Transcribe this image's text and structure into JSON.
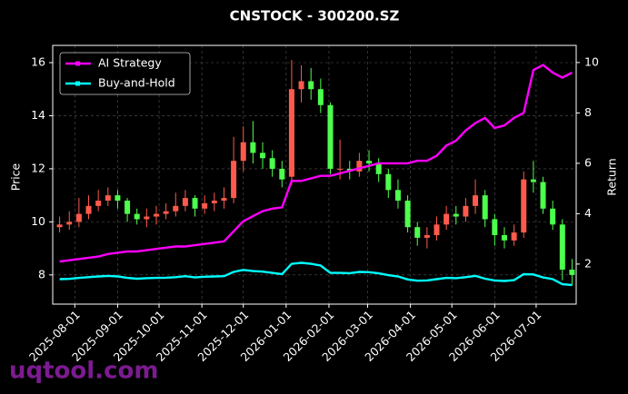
{
  "chart_data": {
    "type": "candlestick",
    "title": "CNSTOCK - 300200.SZ",
    "ylabel": "Price",
    "y2label": "Return",
    "watermark": "uqtool.com",
    "up_color": "#ff5a4d",
    "down_color": "#4dff4d",
    "grid": true,
    "legend": "upper-left",
    "x": [
      "2025-07-21",
      "2025-07-28",
      "2025-08-04",
      "2025-08-11",
      "2025-08-18",
      "2025-08-25",
      "2025-09-01",
      "2025-09-08",
      "2025-09-15",
      "2025-09-22",
      "2025-09-29",
      "2025-10-06",
      "2025-10-13",
      "2025-10-20",
      "2025-10-27",
      "2025-11-03",
      "2025-11-10",
      "2025-11-17",
      "2025-11-24",
      "2025-12-01",
      "2025-12-08",
      "2025-12-15",
      "2025-12-22",
      "2025-12-29",
      "2026-01-05",
      "2026-01-12",
      "2026-01-19",
      "2026-01-26",
      "2026-02-02",
      "2026-02-09",
      "2026-02-16",
      "2026-02-23",
      "2026-03-02",
      "2026-03-09",
      "2026-03-16",
      "2026-03-23",
      "2026-03-30",
      "2026-04-06",
      "2026-04-13",
      "2026-04-20",
      "2026-04-27",
      "2026-05-04",
      "2026-05-11",
      "2026-05-18",
      "2026-05-25",
      "2026-06-01",
      "2026-06-08",
      "2026-06-15",
      "2026-06-22",
      "2026-06-29",
      "2026-07-06",
      "2026-07-13",
      "2026-07-20",
      "2026-07-27"
    ],
    "open": [
      9.8,
      9.9,
      10.0,
      10.3,
      10.6,
      10.8,
      11.0,
      10.8,
      10.3,
      10.1,
      10.2,
      10.3,
      10.4,
      10.6,
      10.9,
      10.5,
      10.7,
      10.8,
      10.9,
      12.3,
      13.0,
      12.6,
      12.4,
      12.0,
      11.7,
      15.0,
      15.3,
      15.0,
      14.4,
      12.0,
      12.0,
      11.9,
      12.3,
      12.2,
      11.8,
      11.2,
      10.8,
      9.8,
      9.4,
      9.5,
      9.9,
      10.3,
      10.2,
      10.6,
      11.0,
      10.1,
      9.5,
      9.3,
      9.6,
      11.6,
      11.5,
      10.5,
      9.9,
      8.2
    ],
    "high": [
      10.2,
      10.4,
      10.9,
      11.0,
      11.2,
      11.3,
      11.2,
      10.9,
      10.5,
      10.5,
      10.6,
      10.7,
      11.1,
      11.2,
      11.0,
      11.0,
      11.1,
      11.3,
      13.2,
      13.6,
      13.8,
      13.0,
      12.7,
      12.3,
      16.1,
      15.9,
      15.8,
      15.4,
      14.5,
      13.1,
      12.3,
      12.6,
      12.7,
      12.4,
      12.0,
      11.6,
      11.0,
      10.0,
      9.8,
      10.2,
      10.6,
      10.6,
      10.9,
      11.6,
      11.2,
      10.3,
      9.8,
      9.9,
      11.9,
      12.3,
      11.7,
      10.8,
      10.1,
      8.6
    ],
    "low": [
      9.6,
      9.7,
      9.8,
      10.1,
      10.4,
      10.6,
      10.5,
      10.0,
      9.9,
      9.8,
      9.9,
      10.1,
      10.2,
      10.4,
      10.2,
      10.3,
      10.4,
      10.5,
      10.7,
      11.9,
      12.2,
      12.0,
      11.7,
      11.3,
      11.4,
      14.5,
      14.6,
      14.1,
      11.8,
      11.6,
      11.6,
      11.7,
      11.9,
      11.5,
      10.9,
      10.5,
      9.6,
      9.1,
      9.0,
      9.3,
      9.7,
      9.9,
      10.0,
      10.3,
      9.8,
      9.1,
      9.0,
      9.1,
      9.4,
      11.1,
      10.3,
      9.7,
      7.8,
      7.6
    ],
    "close": [
      9.9,
      10.0,
      10.3,
      10.6,
      10.8,
      11.0,
      10.8,
      10.3,
      10.1,
      10.2,
      10.3,
      10.4,
      10.6,
      10.9,
      10.5,
      10.7,
      10.8,
      10.9,
      12.3,
      13.0,
      12.6,
      12.4,
      12.0,
      11.6,
      15.0,
      15.3,
      15.0,
      14.4,
      12.0,
      12.0,
      11.9,
      12.3,
      12.2,
      11.8,
      11.2,
      10.8,
      9.8,
      9.4,
      9.5,
      9.9,
      10.3,
      10.2,
      10.6,
      11.0,
      10.1,
      9.5,
      9.3,
      9.6,
      11.6,
      11.5,
      10.5,
      9.9,
      8.2,
      8.0
    ],
    "series": [
      {
        "name": "AI Strategy",
        "color": "#ff00ff",
        "axis": "y2",
        "values": [
          2.1,
          2.15,
          2.2,
          2.25,
          2.3,
          2.4,
          2.45,
          2.5,
          2.5,
          2.55,
          2.6,
          2.65,
          2.7,
          2.7,
          2.75,
          2.8,
          2.85,
          2.9,
          3.3,
          3.7,
          3.9,
          4.1,
          4.2,
          4.25,
          5.3,
          5.3,
          5.4,
          5.5,
          5.5,
          5.6,
          5.7,
          5.8,
          5.9,
          6.0,
          6.0,
          6.0,
          6.0,
          6.1,
          6.1,
          6.3,
          6.7,
          6.9,
          7.3,
          7.6,
          7.8,
          7.4,
          7.5,
          7.8,
          8.0,
          9.7,
          9.9,
          9.6,
          9.4,
          9.6
        ]
      },
      {
        "name": "Buy-and-Hold",
        "color": "#00ffff",
        "axis": "y2",
        "values": [
          1.4,
          1.41,
          1.45,
          1.48,
          1.51,
          1.53,
          1.51,
          1.45,
          1.42,
          1.44,
          1.45,
          1.46,
          1.48,
          1.52,
          1.47,
          1.5,
          1.51,
          1.52,
          1.69,
          1.77,
          1.72,
          1.7,
          1.65,
          1.6,
          2.01,
          2.05,
          2.01,
          1.94,
          1.65,
          1.65,
          1.64,
          1.69,
          1.68,
          1.63,
          1.56,
          1.51,
          1.39,
          1.34,
          1.35,
          1.4,
          1.45,
          1.44,
          1.48,
          1.53,
          1.42,
          1.35,
          1.33,
          1.36,
          1.6,
          1.59,
          1.47,
          1.4,
          1.2,
          1.17
        ]
      }
    ],
    "xlim": [
      "2025-07-16",
      "2026-07-30"
    ],
    "xticks": [
      "2025-08-01",
      "2025-09-01",
      "2025-10-01",
      "2025-11-01",
      "2025-12-01",
      "2026-01-01",
      "2026-02-01",
      "2026-03-01",
      "2026-04-01",
      "2026-05-01",
      "2026-06-01",
      "2026-07-01"
    ],
    "ylim": [
      6.9,
      16.65
    ],
    "yticks": [
      8,
      10,
      12,
      14,
      16
    ],
    "y2lim": [
      0.41,
      10.68
    ],
    "y2ticks": [
      2,
      4,
      6,
      8,
      10
    ]
  }
}
